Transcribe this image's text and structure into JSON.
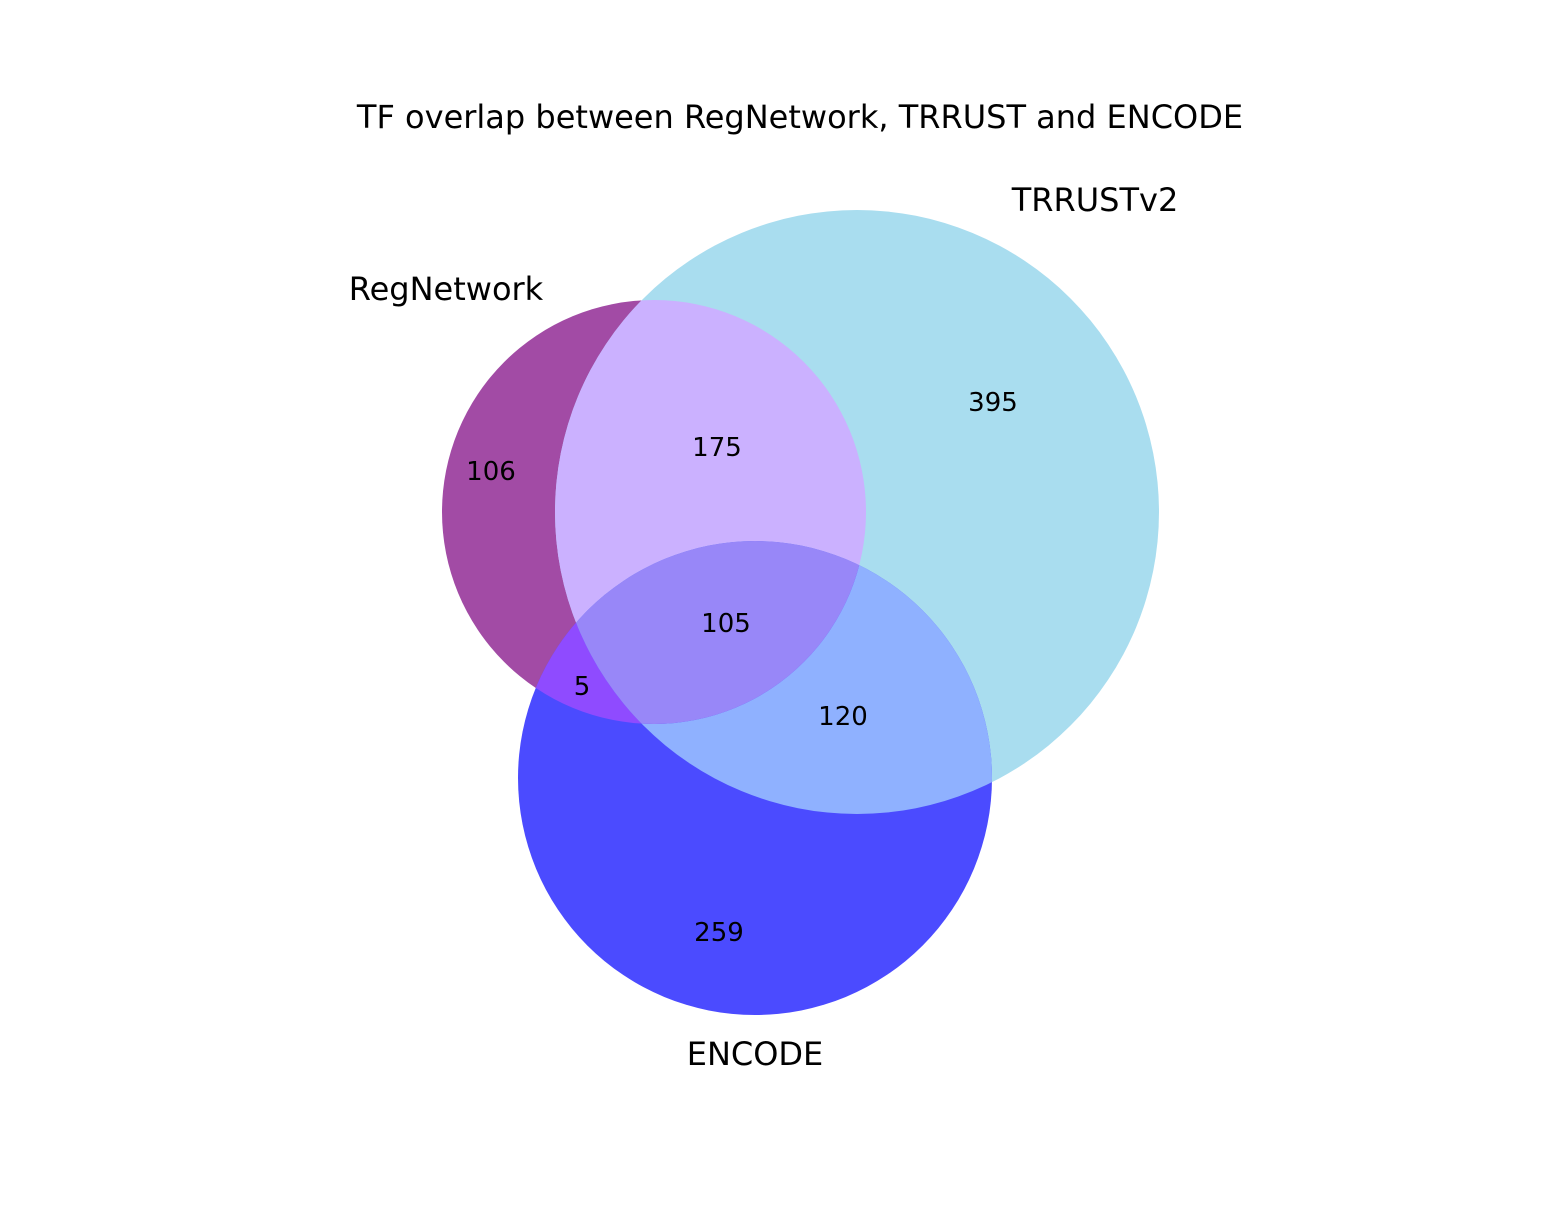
{
  "title": "TF overlap between RegNetwork, TRRUST and ENCODE",
  "sets": [
    {
      "key": "regnetwork",
      "name": "RegNetwork",
      "color": "#a24ba5"
    },
    {
      "key": "trrust",
      "name": "TRRUSTv2",
      "color": "#a9ddef"
    },
    {
      "key": "encode",
      "name": "ENCODE",
      "color": "#4b4bff"
    }
  ],
  "regions": {
    "regnetwork_only": "106",
    "trrust_only": "395",
    "encode_only": "259",
    "regnetwork_trrust": "175",
    "regnetwork_encode": "5",
    "trrust_encode": "120",
    "all_three": "105"
  },
  "region_colors": {
    "regnetwork_only": "#a24ba5",
    "trrust_only": "#a9ddef",
    "encode_only": "#4b4bff",
    "regnetwork_trrust": "#cbb1ff",
    "regnetwork_encode": "#8f4bff",
    "trrust_encode": "#8fb1ff",
    "all_three": "#9887f8"
  }
}
